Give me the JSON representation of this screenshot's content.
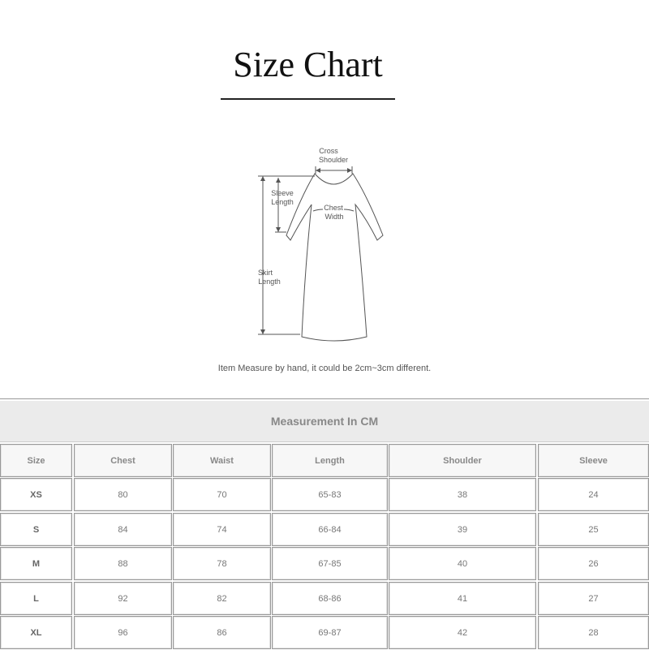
{
  "title": "Size Chart",
  "diagram": {
    "cross_shoulder": [
      "Cross",
      "Shoulder"
    ],
    "sleeve_length": [
      "Sleeve",
      "Length"
    ],
    "chest_width": [
      "Chest",
      "Width"
    ],
    "skirt_length": [
      "Skirt",
      "Length"
    ]
  },
  "note": "Item Measure by hand, it could be 2cm~3cm different.",
  "table": {
    "caption": "Measurement In CM",
    "headers": [
      "Size",
      "Chest",
      "Waist",
      "Length",
      "Shoulder",
      "Sleeve"
    ],
    "rows": [
      [
        "XS",
        "80",
        "70",
        "65-83",
        "38",
        "24"
      ],
      [
        "S",
        "84",
        "74",
        "66-84",
        "39",
        "25"
      ],
      [
        "M",
        "88",
        "78",
        "67-85",
        "40",
        "26"
      ],
      [
        "L",
        "92",
        "82",
        "68-86",
        "41",
        "27"
      ],
      [
        "XL",
        "96",
        "86",
        "69-87",
        "42",
        "28"
      ]
    ]
  }
}
